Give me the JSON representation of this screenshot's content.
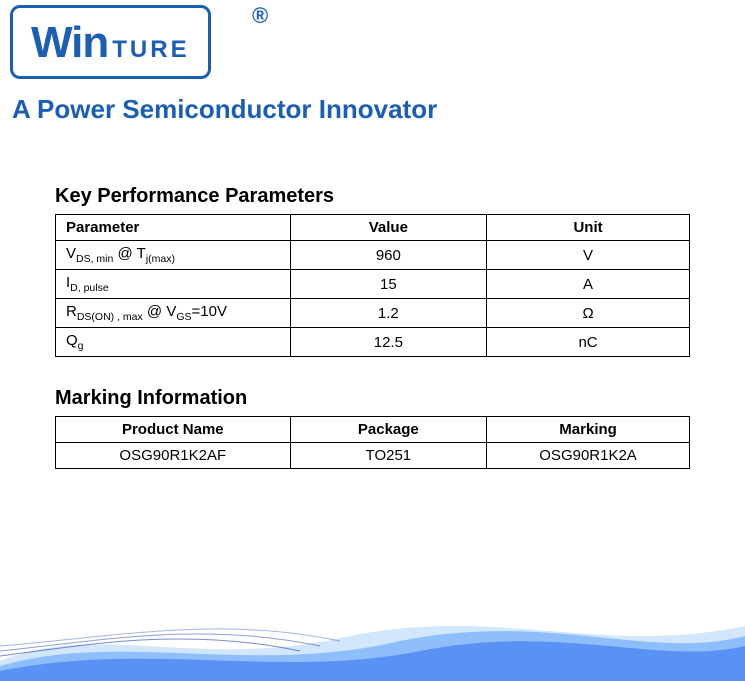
{
  "logo": {
    "text_win": "Win",
    "text_ture": "TURE",
    "registered": "®"
  },
  "tagline": "A Power Semiconductor Innovator",
  "performance": {
    "title": "Key Performance Parameters",
    "headers": {
      "param": "Parameter",
      "value": "Value",
      "unit": "Unit"
    },
    "rows": [
      {
        "param_html": "V<sub>DS, min</sub> @ T<sub>j(max)</sub>",
        "value": "960",
        "unit": "V"
      },
      {
        "param_html": "I<sub>D, pulse</sub>",
        "value": "15",
        "unit": "A"
      },
      {
        "param_html": "R<sub>DS(ON) , max</sub> @ V<sub>GS</sub>=10V",
        "value": "1.2",
        "unit": "Ω"
      },
      {
        "param_html": "Q<sub>g</sub>",
        "value": "12.5",
        "unit": "nC"
      }
    ]
  },
  "marking": {
    "title": "Marking Information",
    "headers": {
      "product": "Product Name",
      "package": "Package",
      "marking": "Marking"
    },
    "rows": [
      {
        "product": "OSG90R1K2AF",
        "package": "TO251",
        "marking": "OSG90R1K2A"
      }
    ]
  },
  "styling": {
    "brand_color": "#1a5fb4",
    "border_color": "#000000",
    "background": "#ffffff",
    "wave_colors": [
      "#2563eb",
      "#60a5fa",
      "#bfdbfe"
    ]
  }
}
